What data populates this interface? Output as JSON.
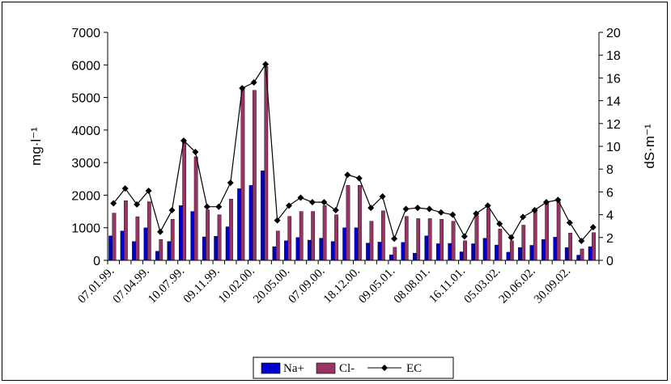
{
  "chart_data": {
    "type": "bar",
    "ylabel_left": "mg·l⁻¹",
    "ylabel_right": "dS·m⁻¹",
    "ylim_left": [
      0,
      7000
    ],
    "ylim_right": [
      0,
      20
    ],
    "yticks_left": [
      "0",
      "1000",
      "2000",
      "3000",
      "4000",
      "5000",
      "6000",
      "7000"
    ],
    "yticks_right": [
      "0",
      "2",
      "4",
      "6",
      "8",
      "10",
      "12",
      "14",
      "16",
      "18",
      "20"
    ],
    "xtick_labels": [
      "07.01.99.",
      "07.04.99.",
      "10.07.99.",
      "09.11.99.",
      "10.02.00.",
      "20.05.00.",
      "07.09.00.",
      "18.12.00.",
      "09.05.01.",
      "08.08.01.",
      "16.11.01.",
      "05.03.02.",
      "20.06.02.",
      "30.09.02."
    ],
    "legend": [
      "Na+",
      "Cl-",
      "EC"
    ],
    "colors": {
      "na": "#0000cc",
      "cl": "#993366",
      "ec": "#000000"
    },
    "series": [
      {
        "name": "Na+",
        "axis": "left",
        "values": [
          750,
          900,
          580,
          1000,
          280,
          580,
          1680,
          1500,
          720,
          740,
          1030,
          2200,
          2300,
          2750,
          420,
          600,
          700,
          620,
          680,
          580,
          1000,
          1000,
          530,
          560,
          170,
          550,
          220,
          750,
          510,
          520,
          260,
          510,
          680,
          470,
          250,
          390,
          460,
          640,
          710,
          390,
          160,
          420
        ]
      },
      {
        "name": "Cl-",
        "axis": "left",
        "values": [
          1450,
          1830,
          1340,
          1800,
          640,
          1260,
          3650,
          3180,
          1550,
          1400,
          1880,
          5250,
          5220,
          5950,
          900,
          1350,
          1500,
          1500,
          1680,
          1400,
          2300,
          2300,
          1200,
          1520,
          400,
          1350,
          1280,
          1280,
          1260,
          1200,
          600,
          1380,
          1580,
          960,
          600,
          1080,
          1600,
          1750,
          1800,
          840,
          350,
          850
        ]
      },
      {
        "name": "EC",
        "axis": "right",
        "values": [
          5.0,
          6.3,
          4.9,
          6.1,
          2.5,
          4.4,
          10.5,
          9.5,
          4.7,
          4.7,
          6.8,
          15.1,
          15.6,
          17.2,
          3.5,
          4.8,
          5.5,
          5.1,
          5.1,
          4.4,
          7.5,
          7.2,
          4.6,
          5.6,
          1.9,
          4.5,
          4.6,
          4.5,
          4.2,
          4.0,
          2.1,
          4.1,
          4.8,
          3.2,
          2.0,
          3.8,
          4.4,
          5.1,
          5.3,
          3.3,
          1.7,
          2.9
        ]
      }
    ],
    "legend_position": "bottom-center",
    "grid": false
  }
}
